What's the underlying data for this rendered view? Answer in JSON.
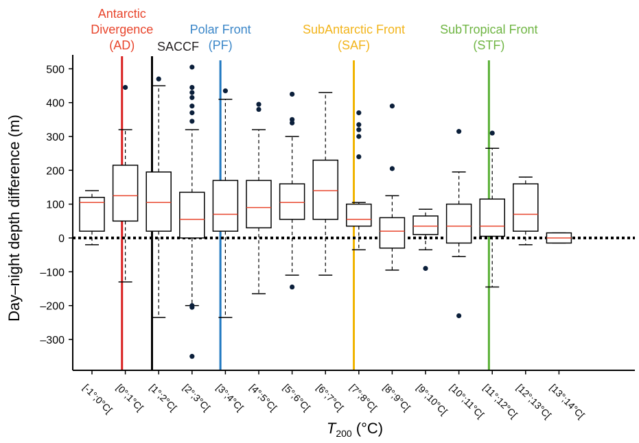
{
  "chart_data": {
    "type": "box",
    "xlabel": "T",
    "xlabel_subscript": "200",
    "xlabel_unit": " (°C)",
    "ylabel": "Day–night depth difference (m)",
    "ylim": [
      -400,
      550
    ],
    "yticks": [
      500,
      400,
      300,
      200,
      100,
      0,
      -100,
      -200,
      -300
    ],
    "ytick_labels": [
      "500",
      "400",
      "300",
      "200",
      "100",
      "0",
      "–100",
      "–200",
      "–300"
    ],
    "zero_line": "dotted",
    "colors": {
      "box": "#000000",
      "median": "#e8452c",
      "outlier": "#0b1f3a"
    },
    "categories": [
      "[-1°;0°C[",
      "[0°;1°C[",
      "[1°;2°C[",
      "[2°;3°C[",
      "[3°;4°C[",
      "[4°;5°C[",
      "[5°;6°C[",
      "[6°;7°C[",
      "[7°;8°C[",
      "[8°;9°C[",
      "[9°;10°C[",
      "[10°;11°C[",
      "[11°;12°C[",
      "[12°;13°C[",
      "[13°;14°C["
    ],
    "boxes": [
      {
        "whisker_low": -20,
        "q1": 20,
        "median": 105,
        "q3": 120,
        "whisker_high": 140,
        "outliers": []
      },
      {
        "whisker_low": -130,
        "q1": 50,
        "median": 125,
        "q3": 215,
        "whisker_high": 320,
        "outliers": [
          445
        ]
      },
      {
        "whisker_low": -235,
        "q1": 20,
        "median": 105,
        "q3": 195,
        "whisker_high": 450,
        "outliers": [
          470
        ]
      },
      {
        "whisker_low": -200,
        "q1": 0,
        "median": 55,
        "q3": 135,
        "whisker_high": 320,
        "outliers": [
          505,
          445,
          430,
          415,
          390,
          370,
          345,
          -200,
          -205,
          -350
        ]
      },
      {
        "whisker_low": -235,
        "q1": 20,
        "median": 70,
        "q3": 170,
        "whisker_high": 410,
        "outliers": [
          435
        ]
      },
      {
        "whisker_low": -165,
        "q1": 30,
        "median": 90,
        "q3": 170,
        "whisker_high": 320,
        "outliers": [
          395,
          380
        ]
      },
      {
        "whisker_low": -110,
        "q1": 55,
        "median": 105,
        "q3": 160,
        "whisker_high": 300,
        "outliers": [
          425,
          350,
          340,
          -145
        ]
      },
      {
        "whisker_low": -110,
        "q1": 55,
        "median": 140,
        "q3": 230,
        "whisker_high": 430,
        "outliers": []
      },
      {
        "whisker_low": -35,
        "q1": 35,
        "median": 55,
        "q3": 100,
        "whisker_high": 105,
        "outliers": [
          370,
          335,
          320,
          300,
          240
        ]
      },
      {
        "whisker_low": -95,
        "q1": -30,
        "median": 20,
        "q3": 60,
        "whisker_high": 125,
        "outliers": [
          390,
          205
        ]
      },
      {
        "whisker_low": -35,
        "q1": 10,
        "median": 35,
        "q3": 65,
        "whisker_high": 85,
        "outliers": [
          -90
        ]
      },
      {
        "whisker_low": -55,
        "q1": -15,
        "median": 35,
        "q3": 100,
        "whisker_high": 195,
        "outliers": [
          315,
          -230
        ]
      },
      {
        "whisker_low": -145,
        "q1": 5,
        "median": 35,
        "q3": 115,
        "whisker_high": 265,
        "outliers": [
          310
        ]
      },
      {
        "whisker_low": -20,
        "q1": 20,
        "median": 70,
        "q3": 160,
        "whisker_high": 180,
        "outliers": []
      },
      {
        "whisker_low": -15,
        "q1": -15,
        "median": 0,
        "q3": 15,
        "whisker_high": 15,
        "outliers": []
      }
    ],
    "fronts": [
      {
        "lines": [
          "Antarctic",
          "Divergence",
          "(AD)"
        ],
        "color": "#e8452c",
        "line_color": "#d91f1f",
        "position": 0.9
      },
      {
        "lines": [
          "SACCF"
        ],
        "color": "#231f20",
        "line_color": "#000000",
        "position": 1.8
      },
      {
        "lines": [
          "Polar Front",
          "(PF)"
        ],
        "color": "#3a86c8",
        "line_color": "#1f78c1",
        "position": 3.85
      },
      {
        "lines": [
          "SubAntarctic Front",
          "(SAF)"
        ],
        "color": "#f2b41b",
        "line_color": "#f0b400",
        "position": 7.85
      },
      {
        "lines": [
          "SubTropical Front",
          "(STF)"
        ],
        "color": "#6fb543",
        "line_color": "#58b034",
        "position": 11.9
      }
    ]
  }
}
